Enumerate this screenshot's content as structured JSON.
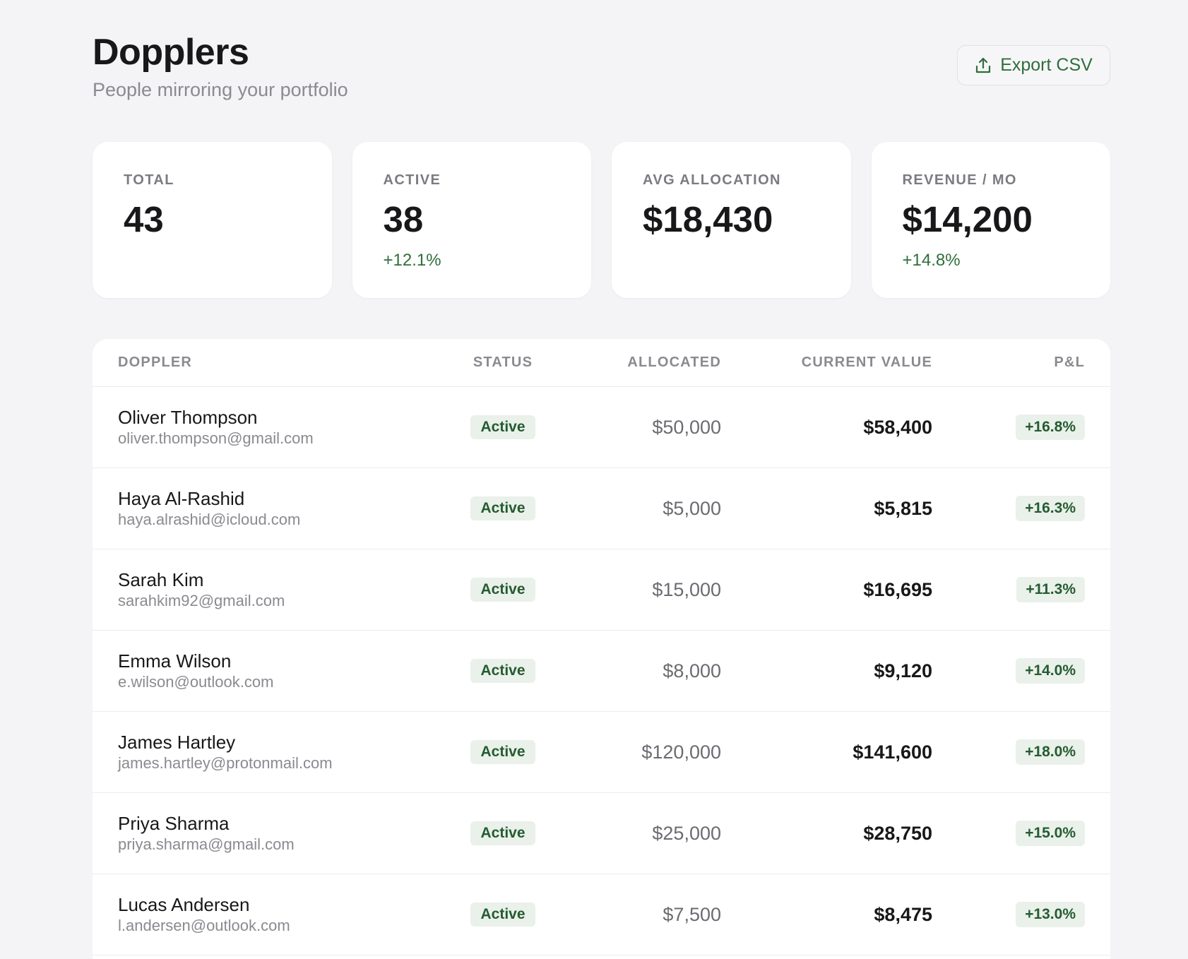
{
  "header": {
    "title": "Dopplers",
    "subtitle": "People mirroring your portfolio",
    "export_label": "Export CSV"
  },
  "stats": [
    {
      "label": "TOTAL",
      "value": "43",
      "delta": ""
    },
    {
      "label": "ACTIVE",
      "value": "38",
      "delta": "+12.1%"
    },
    {
      "label": "AVG ALLOCATION",
      "value": "$18,430",
      "delta": ""
    },
    {
      "label": "REVENUE / MO",
      "value": "$14,200",
      "delta": "+14.8%"
    }
  ],
  "table": {
    "columns": {
      "doppler": "DOPPLER",
      "status": "STATUS",
      "allocated": "ALLOCATED",
      "current": "CURRENT VALUE",
      "pl": "P&L"
    },
    "rows": [
      {
        "name": "Oliver Thompson",
        "email": "oliver.thompson@gmail.com",
        "status": "Active",
        "allocated": "$50,000",
        "current": "$58,400",
        "pl": "+16.8%"
      },
      {
        "name": "Haya Al-Rashid",
        "email": "haya.alrashid@icloud.com",
        "status": "Active",
        "allocated": "$5,000",
        "current": "$5,815",
        "pl": "+16.3%"
      },
      {
        "name": "Sarah Kim",
        "email": "sarahkim92@gmail.com",
        "status": "Active",
        "allocated": "$15,000",
        "current": "$16,695",
        "pl": "+11.3%"
      },
      {
        "name": "Emma Wilson",
        "email": "e.wilson@outlook.com",
        "status": "Active",
        "allocated": "$8,000",
        "current": "$9,120",
        "pl": "+14.0%"
      },
      {
        "name": "James Hartley",
        "email": "james.hartley@protonmail.com",
        "status": "Active",
        "allocated": "$120,000",
        "current": "$141,600",
        "pl": "+18.0%"
      },
      {
        "name": "Priya Sharma",
        "email": "priya.sharma@gmail.com",
        "status": "Active",
        "allocated": "$25,000",
        "current": "$28,750",
        "pl": "+15.0%"
      },
      {
        "name": "Lucas Andersen",
        "email": "l.andersen@outlook.com",
        "status": "Active",
        "allocated": "$7,500",
        "current": "$8,475",
        "pl": "+13.0%"
      }
    ]
  },
  "colors": {
    "accent_green": "#2f6e3a",
    "badge_bg": "#eaf0ea",
    "page_bg": "#f4f4f6"
  },
  "icons": {
    "export": "upload-icon"
  }
}
